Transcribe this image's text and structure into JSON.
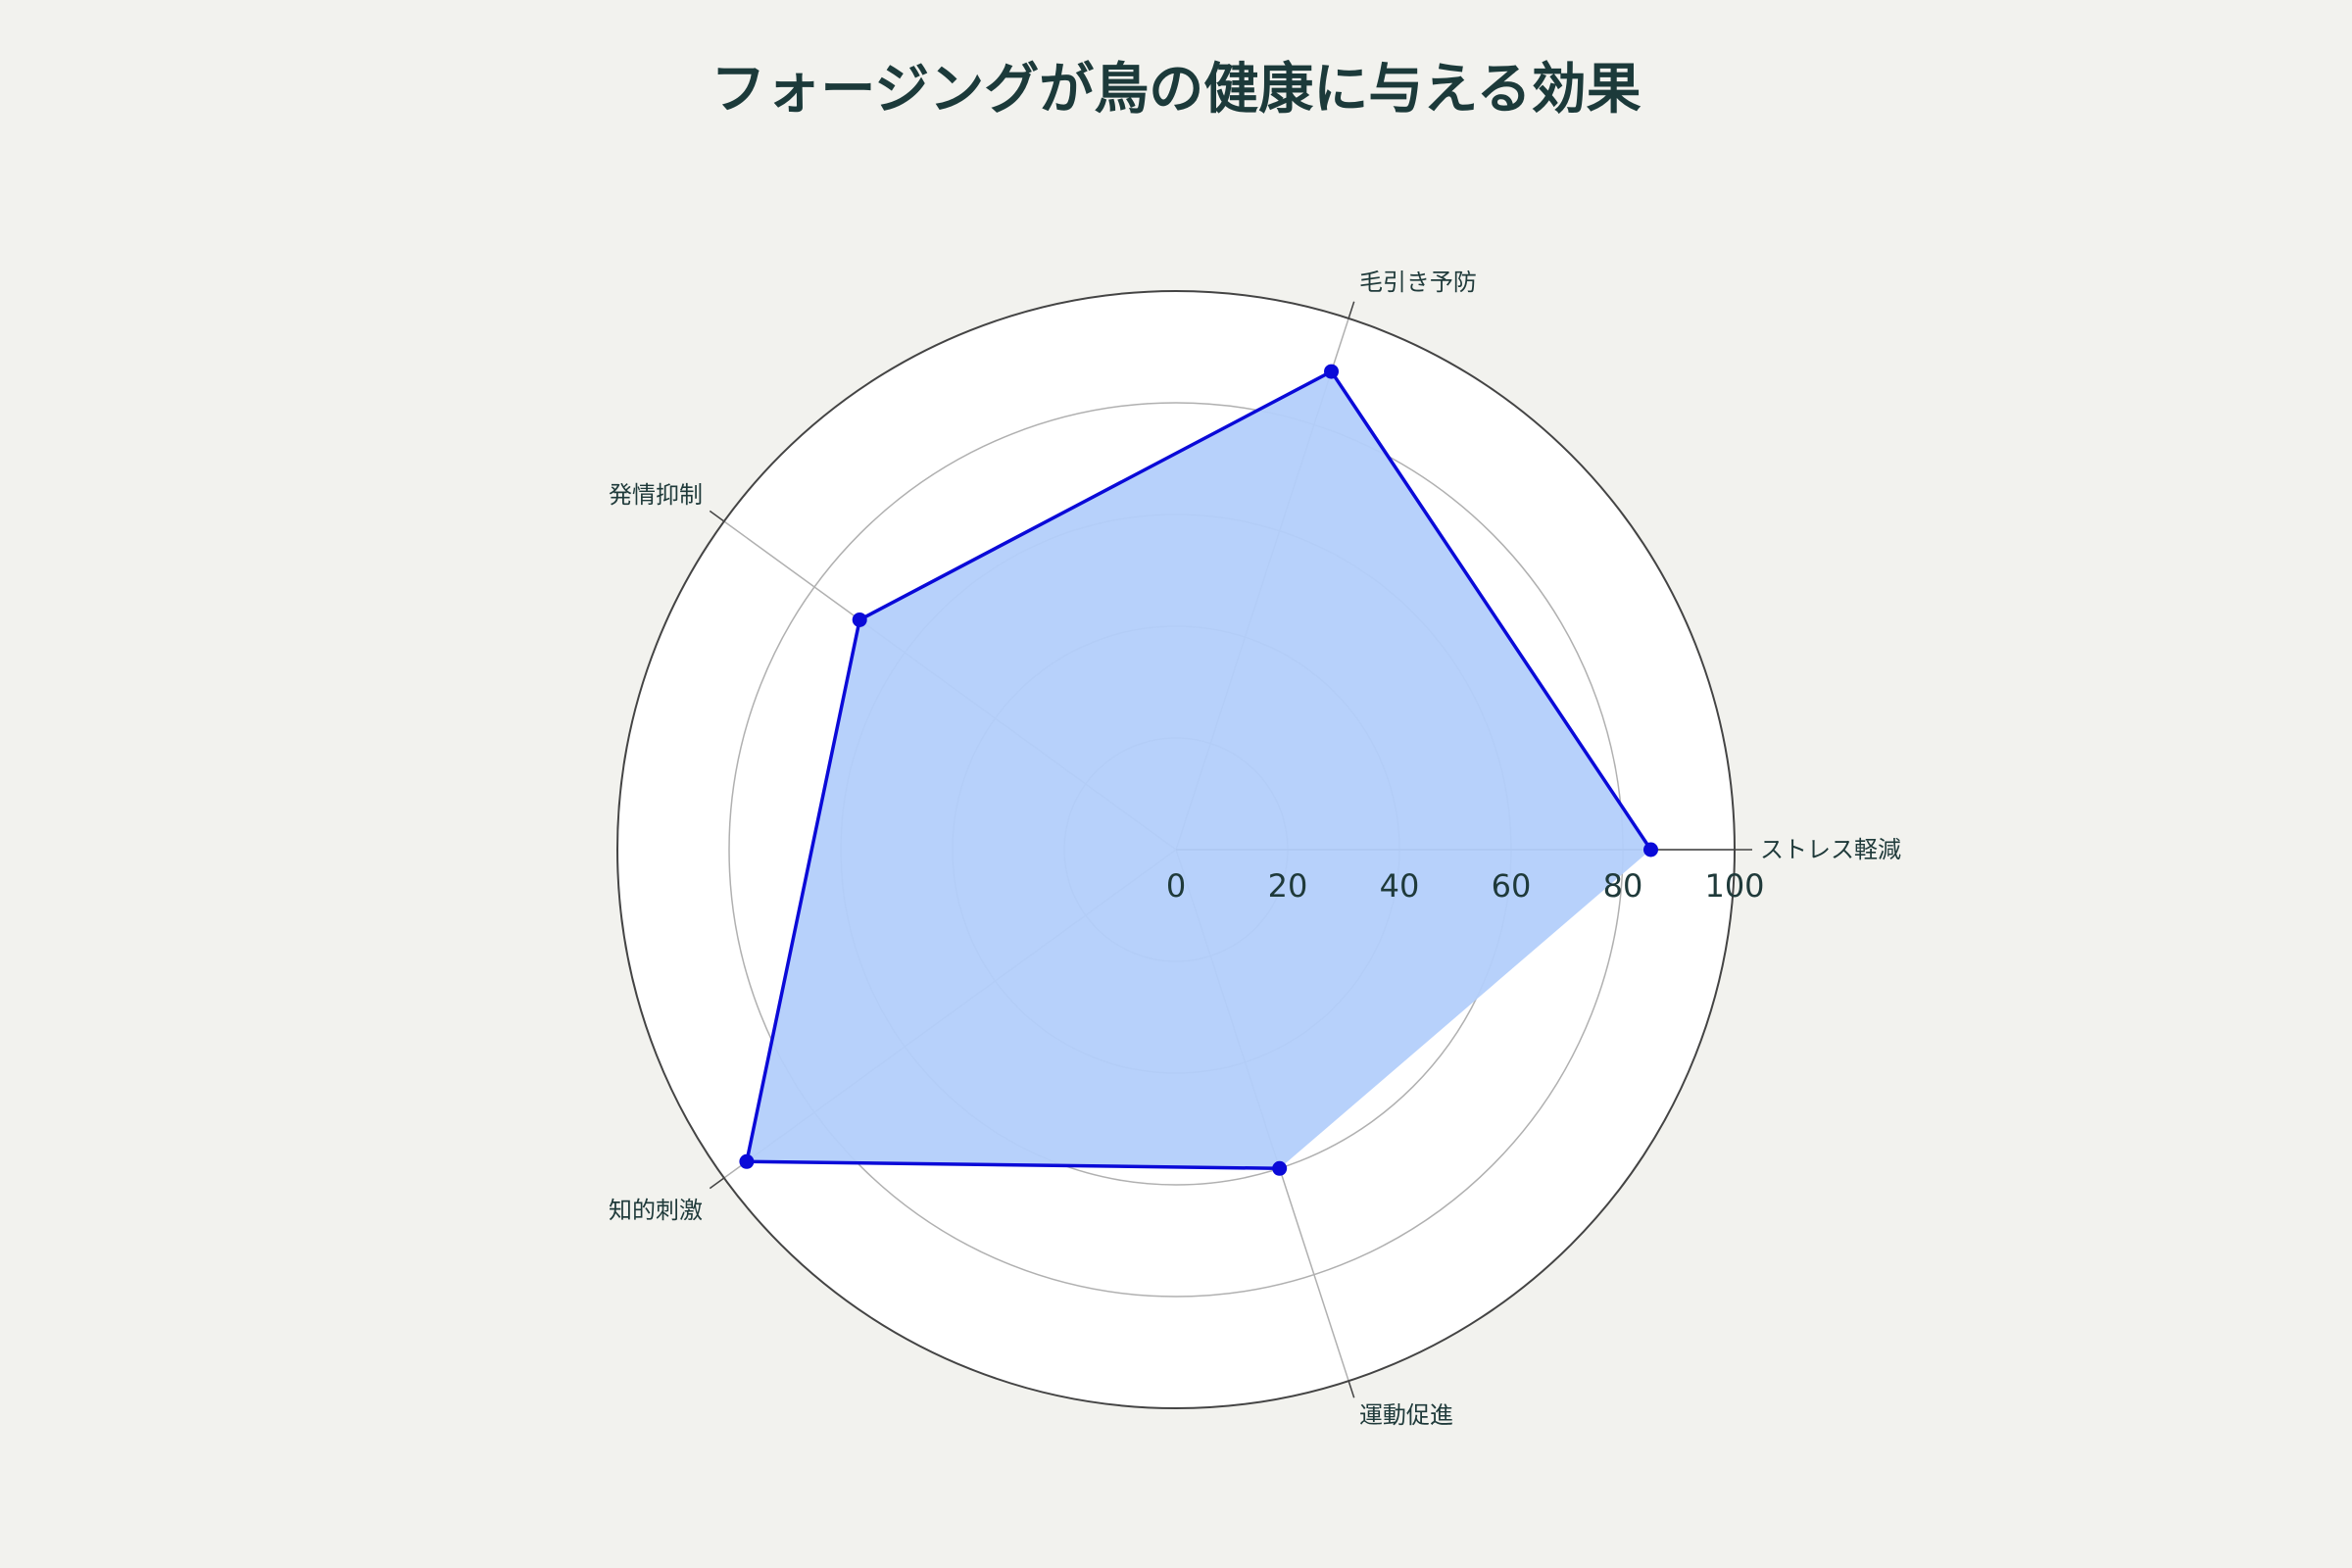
{
  "chart_data": {
    "type": "radar",
    "title": "フォージングが鳥の健康に与える効果",
    "categories": [
      "ストレス軽減",
      "毛引き予防",
      "発情抑制",
      "知的刺激",
      "運動促進"
    ],
    "series": [
      {
        "values": [
          85,
          90,
          70,
          95,
          60
        ]
      }
    ],
    "radial_range": [
      0,
      100
    ],
    "radial_ticks": [
      "0",
      "20",
      "40",
      "60",
      "80",
      "100"
    ],
    "grid": true,
    "colors": {
      "line": "#0a0ad8",
      "fill": "#b3cffb",
      "background": "#f2f2ee",
      "plot_background": "#ffffff",
      "grid": "#b0b0b0",
      "outer_ring": "#444444",
      "text": "#1f3a3a"
    }
  }
}
